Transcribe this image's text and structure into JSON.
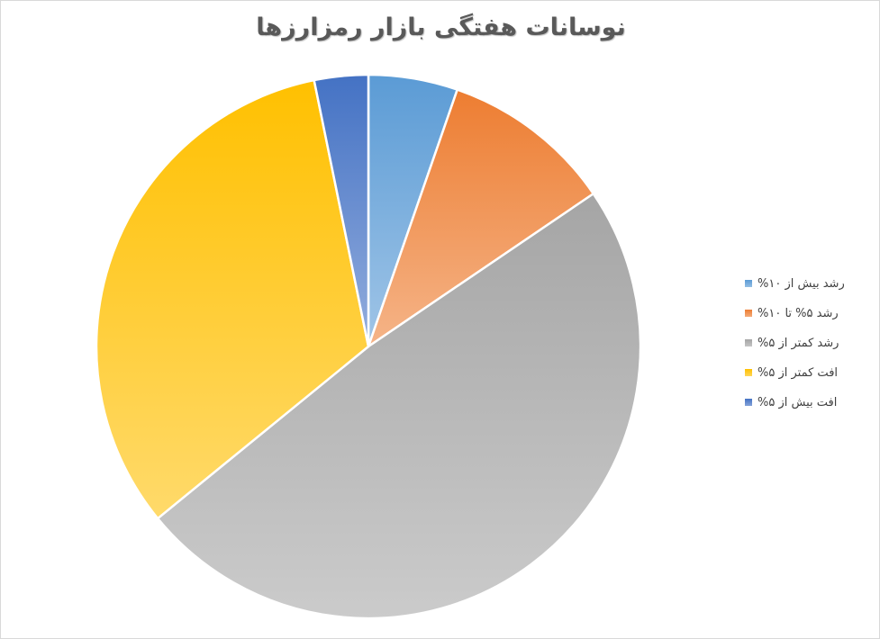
{
  "chart_data": {
    "type": "pie",
    "title": "نوسانات هفتگی بازار رمزارزها",
    "categories": [
      "رشد بیش از ۱۰%",
      "رشد ۵% تا ۱۰%",
      "رشد کمتر  از ۵%",
      "افت کمتر  از ۵%",
      "افت بیش از ۵%"
    ],
    "values": [
      5.3,
      10.2,
      48.6,
      32.7,
      3.2
    ],
    "colors": [
      "#5b9bd5",
      "#ed7d31",
      "#a5a5a5",
      "#ffc000",
      "#4472c4"
    ],
    "legend_position": "right"
  }
}
